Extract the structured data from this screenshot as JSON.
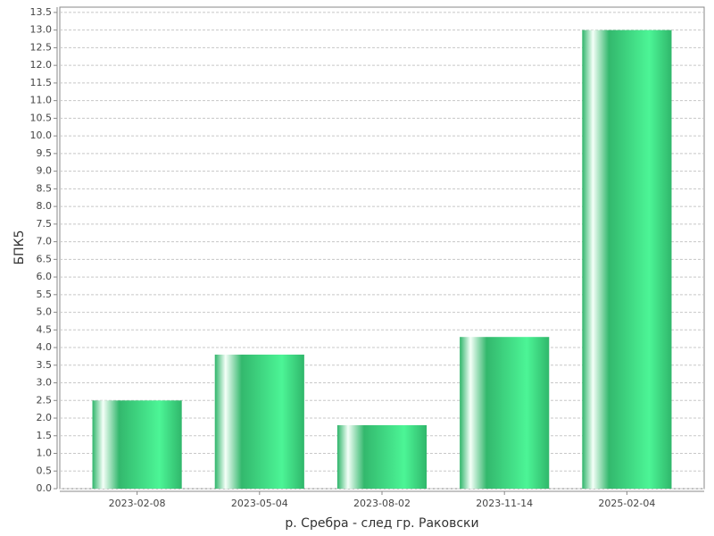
{
  "chart_data": {
    "type": "bar",
    "x_label": "р. Сребра - след гр. Раковски",
    "y_label": "БПК5",
    "categories": [
      "2023-02-08",
      "2023-05-04",
      "2023-08-02",
      "2023-11-14",
      "2025-02-04"
    ],
    "values": [
      2.5,
      3.8,
      1.8,
      4.3,
      13.0
    ],
    "color": "#4cf596",
    "ylim": [
      0,
      13.65
    ],
    "yticks": [
      {
        "value": 0,
        "label": "0.0"
      },
      0.5,
      {
        "value": 1,
        "label": "1.0"
      },
      1.5,
      {
        "value": 2,
        "label": "2.0"
      },
      2.5,
      {
        "value": 3,
        "label": "3.0"
      },
      3.5,
      {
        "value": 4,
        "label": "4.0"
      },
      4.5,
      {
        "value": 5,
        "label": "5.0"
      },
      5.5,
      {
        "value": 6,
        "label": "6.0"
      },
      6.5,
      {
        "value": 7,
        "label": "7.0"
      },
      7.5,
      {
        "value": 8,
        "label": "8.0"
      },
      8.5,
      {
        "value": 9,
        "label": "9.0"
      },
      9.5,
      {
        "value": 10,
        "label": "10.0"
      },
      10.5,
      {
        "value": 11,
        "label": "11.0"
      },
      11.5,
      {
        "value": 12,
        "label": "12.0"
      },
      12.5,
      {
        "value": 13,
        "label": "13.0"
      },
      13.5
    ],
    "grid": true
  }
}
